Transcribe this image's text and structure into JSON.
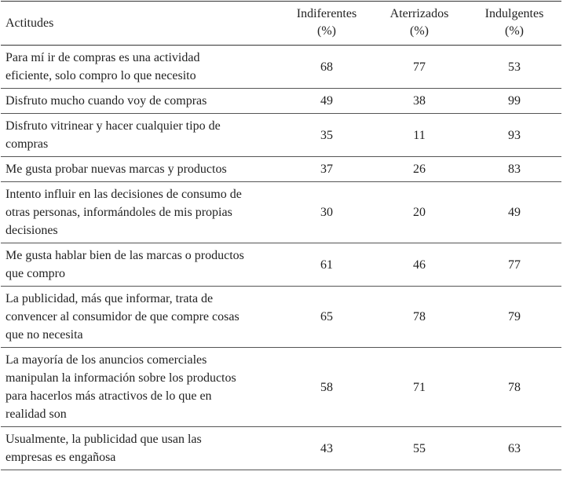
{
  "table": {
    "headers": {
      "attitudes": "Actitudes",
      "indiferentes": {
        "name": "Indiferentes",
        "unit": "(%)"
      },
      "aterrizados": {
        "name": "Aterrizados",
        "unit": "(%)"
      },
      "indulgentes": {
        "name": "Indulgentes",
        "unit": "(%)"
      }
    },
    "rows": [
      {
        "lines": [
          "Para mí ir de compras es una actividad",
          "eficiente, solo compro lo que necesito"
        ],
        "indiferentes": "68",
        "aterrizados": "77",
        "indulgentes": "53"
      },
      {
        "lines": [
          "Disfruto mucho cuando voy de compras"
        ],
        "indiferentes": "49",
        "aterrizados": "38",
        "indulgentes": "99"
      },
      {
        "lines": [
          "Disfruto vitrinear y hacer cualquier tipo de",
          "compras"
        ],
        "indiferentes": "35",
        "aterrizados": "11",
        "indulgentes": "93"
      },
      {
        "lines": [
          "Me gusta probar nuevas marcas y productos"
        ],
        "indiferentes": "37",
        "aterrizados": "26",
        "indulgentes": "83"
      },
      {
        "lines": [
          "Intento influir en las decisiones de consumo de",
          "otras personas, informándoles de mis propias",
          "decisiones"
        ],
        "indiferentes": "30",
        "aterrizados": "20",
        "indulgentes": "49"
      },
      {
        "lines": [
          "Me gusta hablar bien de las marcas o productos",
          "que compro"
        ],
        "indiferentes": "61",
        "aterrizados": "46",
        "indulgentes": "77"
      },
      {
        "lines": [
          "La publicidad, más que informar, trata de",
          "convencer al consumidor de que compre cosas",
          "que no necesita"
        ],
        "indiferentes": "65",
        "aterrizados": "78",
        "indulgentes": "79"
      },
      {
        "lines": [
          "La mayoría de los anuncios comerciales",
          "manipulan la información sobre los productos",
          "para hacerlos más atractivos de lo que en",
          "realidad son"
        ],
        "indiferentes": "58",
        "aterrizados": "71",
        "indulgentes": "78"
      },
      {
        "lines": [
          "Usualmente, la publicidad que usan las",
          "empresas es engañosa"
        ],
        "indiferentes": "43",
        "aterrizados": "55",
        "indulgentes": "63"
      }
    ]
  }
}
